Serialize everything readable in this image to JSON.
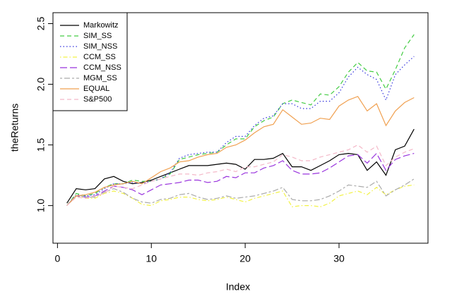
{
  "chart_data": {
    "type": "line",
    "xlabel": "Index",
    "ylabel": "theReturns",
    "x": [
      1,
      2,
      3,
      4,
      5,
      6,
      7,
      8,
      9,
      10,
      11,
      12,
      13,
      14,
      15,
      16,
      17,
      18,
      19,
      20,
      21,
      22,
      23,
      24,
      25,
      26,
      27,
      28,
      29,
      30,
      31,
      32,
      33,
      34,
      35,
      36,
      37,
      38
    ],
    "xlim": [
      -0.48,
      39.48
    ],
    "xticks": [
      0,
      10,
      20,
      30
    ],
    "ylim": [
      0.69,
      2.59
    ],
    "yticks": [
      {
        "value": 1,
        "label": "1.0"
      },
      1.5,
      {
        "value": 2,
        "label": "2.0"
      },
      2.5
    ],
    "legend": "top-left",
    "series": [
      {
        "name": "Markowitz",
        "color": "#000000",
        "linestyle": "solid",
        "values": [
          1.02,
          1.14,
          1.13,
          1.14,
          1.22,
          1.24,
          1.2,
          1.18,
          1.19,
          1.21,
          1.24,
          1.27,
          1.3,
          1.33,
          1.33,
          1.33,
          1.34,
          1.35,
          1.34,
          1.3,
          1.38,
          1.38,
          1.39,
          1.43,
          1.32,
          1.32,
          1.29,
          1.33,
          1.37,
          1.42,
          1.43,
          1.42,
          1.29,
          1.36,
          1.25,
          1.46,
          1.49,
          1.63
        ]
      },
      {
        "name": "SIM_SS",
        "color": "#44cc44",
        "linestyle": "dashed",
        "values": [
          1.0,
          1.1,
          1.08,
          1.1,
          1.15,
          1.18,
          1.18,
          1.21,
          1.2,
          1.2,
          1.22,
          1.26,
          1.38,
          1.4,
          1.42,
          1.43,
          1.44,
          1.5,
          1.55,
          1.55,
          1.65,
          1.7,
          1.73,
          1.84,
          1.87,
          1.85,
          1.83,
          1.92,
          1.91,
          1.98,
          2.1,
          2.18,
          2.11,
          2.1,
          1.96,
          2.12,
          2.3,
          2.41
        ]
      },
      {
        "name": "SIM_NSS",
        "color": "#3333dd",
        "linestyle": "dotted",
        "values": [
          1.0,
          1.09,
          1.08,
          1.09,
          1.14,
          1.18,
          1.18,
          1.19,
          1.18,
          1.2,
          1.22,
          1.27,
          1.39,
          1.42,
          1.43,
          1.44,
          1.44,
          1.52,
          1.57,
          1.57,
          1.66,
          1.72,
          1.74,
          1.84,
          1.84,
          1.8,
          1.8,
          1.86,
          1.86,
          1.93,
          2.06,
          2.14,
          2.08,
          2.04,
          1.87,
          2.08,
          2.16,
          2.23
        ]
      },
      {
        "name": "CCM_SS",
        "color": "#f2f244",
        "linestyle": "dotdash",
        "values": [
          1.0,
          1.08,
          1.06,
          1.06,
          1.1,
          1.12,
          1.1,
          1.06,
          1.01,
          1.0,
          1.04,
          1.05,
          1.07,
          1.07,
          1.05,
          1.04,
          1.05,
          1.07,
          1.05,
          1.03,
          1.06,
          1.08,
          1.1,
          1.12,
          0.99,
          1.0,
          1.0,
          0.99,
          1.02,
          1.08,
          1.1,
          1.12,
          1.09,
          1.15,
          1.09,
          1.13,
          1.16,
          1.17
        ]
      },
      {
        "name": "CCM_NSS",
        "color": "#9933dd",
        "linestyle": "longdash",
        "values": [
          1.0,
          1.08,
          1.07,
          1.08,
          1.12,
          1.16,
          1.15,
          1.13,
          1.09,
          1.13,
          1.17,
          1.18,
          1.19,
          1.21,
          1.21,
          1.19,
          1.2,
          1.24,
          1.23,
          1.27,
          1.27,
          1.31,
          1.33,
          1.37,
          1.29,
          1.26,
          1.26,
          1.27,
          1.31,
          1.36,
          1.41,
          1.42,
          1.35,
          1.43,
          1.29,
          1.38,
          1.41,
          1.43
        ]
      },
      {
        "name": "MGM_SS",
        "color": "#aaaaaa",
        "linestyle": "twodash",
        "values": [
          1.0,
          1.09,
          1.07,
          1.07,
          1.11,
          1.14,
          1.11,
          1.06,
          1.03,
          1.02,
          1.05,
          1.06,
          1.09,
          1.1,
          1.07,
          1.05,
          1.06,
          1.08,
          1.06,
          1.07,
          1.08,
          1.1,
          1.12,
          1.15,
          1.05,
          1.04,
          1.04,
          1.05,
          1.08,
          1.12,
          1.17,
          1.16,
          1.15,
          1.2,
          1.08,
          1.13,
          1.17,
          1.22
        ]
      },
      {
        "name": "EQUAL",
        "color": "#f0a050",
        "linestyle": "solid",
        "values": [
          1.0,
          1.08,
          1.09,
          1.11,
          1.15,
          1.17,
          1.18,
          1.2,
          1.18,
          1.23,
          1.28,
          1.31,
          1.36,
          1.37,
          1.4,
          1.42,
          1.43,
          1.48,
          1.5,
          1.54,
          1.6,
          1.65,
          1.67,
          1.79,
          1.73,
          1.67,
          1.68,
          1.72,
          1.71,
          1.82,
          1.87,
          1.9,
          1.78,
          1.84,
          1.66,
          1.78,
          1.85,
          1.89
        ]
      },
      {
        "name": "S&P500",
        "color": "#f4b8c8",
        "linestyle": "dashed",
        "values": [
          1.0,
          1.07,
          1.06,
          1.08,
          1.1,
          1.16,
          1.15,
          1.14,
          1.17,
          1.2,
          1.22,
          1.24,
          1.26,
          1.26,
          1.25,
          1.27,
          1.28,
          1.3,
          1.28,
          1.32,
          1.32,
          1.34,
          1.36,
          1.42,
          1.4,
          1.37,
          1.37,
          1.4,
          1.42,
          1.44,
          1.46,
          1.5,
          1.44,
          1.49,
          1.33,
          1.4,
          1.44,
          1.47
        ]
      }
    ]
  }
}
